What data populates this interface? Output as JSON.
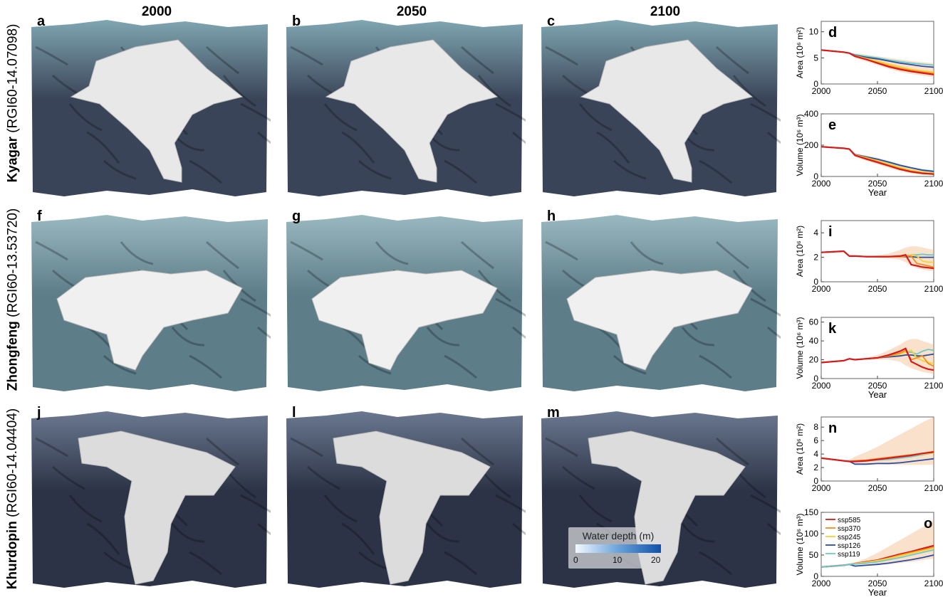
{
  "columns": [
    "2000",
    "2050",
    "2100"
  ],
  "rows": [
    {
      "name": "Kyagar",
      "id": "(RGI60-14.07098)",
      "map_labels": [
        "a",
        "b",
        "c"
      ],
      "terrain": "#3a4458",
      "sky": "#7fa6b2",
      "glacier": "#e8e8e8"
    },
    {
      "name": "Zhongfeng",
      "id": "(RGI60-13.53720)",
      "map_labels": [
        "f",
        "g",
        "h"
      ],
      "terrain": "#5d7d88",
      "sky": "#9ab8c0",
      "glacier": "#f0f0f0"
    },
    {
      "name": "Khurdopin",
      "id": "(RGI60-14.04404)",
      "map_labels": [
        "j",
        "l",
        "m"
      ],
      "terrain": "#2c3346",
      "sky": "#6a7890",
      "glacier": "#dcdcdc"
    }
  ],
  "water_legend": {
    "title": "Water depth (m)",
    "ticks": [
      "0",
      "10",
      "20"
    ]
  },
  "colors": {
    "ssp585": "#d7191c",
    "ssp370": "#f28e1c",
    "ssp245": "#f3d23a",
    "ssp126": "#2b4da0",
    "ssp119": "#6fc9c9"
  },
  "chart_data": [
    {
      "panel": "d",
      "type": "line",
      "ylabel": "Area (10⁶ m²)",
      "xlabel": "",
      "xlim": [
        2000,
        2100
      ],
      "ylim": [
        0,
        12
      ],
      "xticks": [
        "2000",
        "2050",
        "2100"
      ],
      "yticks": [
        "0",
        "5",
        "10"
      ],
      "x": [
        2000,
        2010,
        2020,
        2025,
        2030,
        2040,
        2050,
        2060,
        2070,
        2080,
        2090,
        2100
      ],
      "series": [
        {
          "name": "ssp119",
          "values": [
            6.5,
            6.3,
            6.1,
            5.9,
            5.6,
            5.3,
            5.0,
            4.6,
            4.3,
            4.0,
            3.8,
            3.6
          ]
        },
        {
          "name": "ssp126",
          "values": [
            6.5,
            6.3,
            6.1,
            5.9,
            5.5,
            5.1,
            4.8,
            4.4,
            4.0,
            3.7,
            3.4,
            3.2
          ]
        },
        {
          "name": "ssp245",
          "values": [
            6.5,
            6.3,
            6.1,
            5.9,
            5.4,
            4.9,
            4.4,
            3.8,
            3.3,
            2.8,
            2.5,
            2.3
          ]
        },
        {
          "name": "ssp370",
          "values": [
            6.5,
            6.3,
            6.1,
            5.9,
            5.3,
            4.7,
            4.1,
            3.5,
            3.0,
            2.6,
            2.3,
            2.0
          ]
        },
        {
          "name": "ssp585",
          "values": [
            6.5,
            6.3,
            6.1,
            5.9,
            5.3,
            4.7,
            4.0,
            3.3,
            2.8,
            2.4,
            2.1,
            1.8
          ]
        }
      ],
      "band": {
        "lower": [
          6.5,
          6.3,
          6.1,
          5.9,
          5.0,
          4.3,
          3.6,
          2.9,
          2.3,
          1.9,
          1.6,
          1.3
        ],
        "upper": [
          6.5,
          6.3,
          6.1,
          5.9,
          5.9,
          5.6,
          5.3,
          5.0,
          4.7,
          4.4,
          4.2,
          4.0
        ]
      }
    },
    {
      "panel": "e",
      "type": "line",
      "ylabel": "Volume (10⁶ m³)",
      "xlabel": "Year",
      "xlim": [
        2000,
        2100
      ],
      "ylim": [
        0,
        400
      ],
      "xticks": [
        "2000",
        "2050",
        "2100"
      ],
      "yticks": [
        "0",
        "200",
        "400"
      ],
      "x": [
        2000,
        2010,
        2020,
        2025,
        2030,
        2040,
        2050,
        2060,
        2070,
        2080,
        2090,
        2100
      ],
      "series": [
        {
          "name": "ssp119",
          "values": [
            190,
            185,
            180,
            175,
            140,
            125,
            110,
            90,
            70,
            55,
            42,
            35
          ]
        },
        {
          "name": "ssp126",
          "values": [
            190,
            185,
            180,
            175,
            140,
            125,
            110,
            92,
            72,
            55,
            40,
            32
          ]
        },
        {
          "name": "ssp245",
          "values": [
            190,
            185,
            180,
            175,
            138,
            120,
            100,
            80,
            58,
            40,
            28,
            22
          ]
        },
        {
          "name": "ssp370",
          "values": [
            190,
            185,
            180,
            175,
            135,
            115,
            95,
            72,
            50,
            33,
            22,
            17
          ]
        },
        {
          "name": "ssp585",
          "values": [
            190,
            185,
            180,
            175,
            135,
            112,
            90,
            68,
            46,
            30,
            20,
            15
          ]
        }
      ],
      "band": {
        "lower": [
          190,
          185,
          180,
          175,
          125,
          100,
          78,
          55,
          35,
          20,
          12,
          8
        ],
        "upper": [
          190,
          185,
          180,
          175,
          148,
          135,
          120,
          100,
          80,
          62,
          48,
          40
        ]
      }
    },
    {
      "panel": "i",
      "type": "line",
      "ylabel": "Area (10⁶ m²)",
      "xlabel": "",
      "xlim": [
        2000,
        2100
      ],
      "ylim": [
        0,
        5
      ],
      "xticks": [
        "2000",
        "2050",
        "2100"
      ],
      "yticks": [
        "0",
        "2",
        "4"
      ],
      "x": [
        2000,
        2010,
        2020,
        2025,
        2030,
        2040,
        2050,
        2060,
        2070,
        2075,
        2080,
        2085,
        2090,
        2095,
        2100
      ],
      "series": [
        {
          "name": "ssp119",
          "values": [
            2.4,
            2.45,
            2.5,
            2.1,
            2.1,
            2.05,
            2.05,
            2.05,
            2.1,
            2.15,
            2.2,
            2.2,
            2.25,
            2.2,
            2.2
          ]
        },
        {
          "name": "ssp126",
          "values": [
            2.4,
            2.45,
            2.5,
            2.1,
            2.1,
            2.05,
            2.05,
            2.05,
            2.05,
            2.05,
            2.05,
            2.0,
            2.0,
            2.0,
            2.0
          ]
        },
        {
          "name": "ssp245",
          "values": [
            2.4,
            2.45,
            2.5,
            2.1,
            2.1,
            2.05,
            2.05,
            2.05,
            2.05,
            2.1,
            2.2,
            2.1,
            1.7,
            1.6,
            1.6
          ]
        },
        {
          "name": "ssp370",
          "values": [
            2.4,
            2.45,
            2.5,
            2.1,
            2.1,
            2.05,
            2.05,
            2.05,
            2.05,
            2.1,
            2.1,
            1.5,
            1.4,
            1.3,
            1.2
          ]
        },
        {
          "name": "ssp585",
          "values": [
            2.4,
            2.45,
            2.5,
            2.1,
            2.1,
            2.05,
            2.05,
            2.05,
            2.1,
            2.2,
            1.4,
            1.3,
            1.2,
            1.15,
            1.1
          ]
        }
      ],
      "band": {
        "lower": [
          2.4,
          2.45,
          2.5,
          2.1,
          2.1,
          2.0,
          1.95,
          1.9,
          1.8,
          1.6,
          1.3,
          1.1,
          1.0,
          0.9,
          0.9
        ],
        "upper": [
          2.4,
          2.45,
          2.5,
          2.1,
          2.1,
          2.1,
          2.15,
          2.3,
          2.6,
          2.8,
          2.9,
          2.9,
          2.8,
          2.7,
          2.6
        ]
      }
    },
    {
      "panel": "k",
      "type": "line",
      "ylabel": "Volume (10⁶ m³)",
      "xlabel": "Year",
      "xlim": [
        2000,
        2100
      ],
      "ylim": [
        0,
        65
      ],
      "xticks": [
        "2000",
        "2050",
        "2100"
      ],
      "yticks": [
        "0",
        "20",
        "40",
        "60"
      ],
      "x": [
        2000,
        2010,
        2020,
        2025,
        2030,
        2040,
        2050,
        2060,
        2070,
        2075,
        2080,
        2085,
        2090,
        2095,
        2100
      ],
      "series": [
        {
          "name": "ssp119",
          "values": [
            17,
            18,
            19,
            21,
            20,
            21,
            22,
            24,
            27,
            28,
            28,
            26,
            29,
            31,
            30
          ]
        },
        {
          "name": "ssp126",
          "values": [
            17,
            18,
            19,
            21,
            20,
            21,
            22,
            23,
            24,
            25,
            25,
            24,
            24,
            25,
            26
          ]
        },
        {
          "name": "ssp245",
          "values": [
            17,
            18,
            19,
            21,
            20,
            21,
            22,
            24,
            26,
            28,
            30,
            22,
            19,
            17,
            16
          ]
        },
        {
          "name": "ssp370",
          "values": [
            17,
            18,
            19,
            21,
            20,
            21,
            22,
            24,
            27,
            30,
            20,
            22,
            24,
            16,
            13
          ]
        },
        {
          "name": "ssp585",
          "values": [
            17,
            18,
            19,
            21,
            20,
            21,
            22,
            25,
            29,
            32,
            18,
            15,
            12,
            10,
            9
          ]
        }
      ],
      "band": {
        "lower": [
          17,
          18,
          19,
          21,
          20,
          20,
          20,
          20,
          18,
          14,
          11,
          9,
          7,
          6,
          5
        ],
        "upper": [
          17,
          18,
          19,
          21,
          20,
          22,
          25,
          30,
          36,
          40,
          42,
          42,
          40,
          38,
          36
        ]
      }
    },
    {
      "panel": "n",
      "type": "line",
      "ylabel": "Area (10⁶ m²)",
      "xlabel": "",
      "xlim": [
        2000,
        2100
      ],
      "ylim": [
        0,
        9.5
      ],
      "xticks": [
        "2000",
        "2050",
        "2100"
      ],
      "yticks": [
        "0",
        "2",
        "4",
        "6",
        "8"
      ],
      "x": [
        2000,
        2010,
        2020,
        2025,
        2030,
        2040,
        2050,
        2060,
        2070,
        2080,
        2090,
        2100
      ],
      "series": [
        {
          "name": "ssp119",
          "values": [
            3.4,
            3.2,
            3.0,
            2.9,
            2.9,
            3.0,
            3.1,
            3.2,
            3.4,
            3.6,
            3.9,
            4.2
          ]
        },
        {
          "name": "ssp126",
          "values": [
            3.4,
            3.2,
            3.0,
            2.9,
            2.5,
            2.5,
            2.6,
            2.6,
            2.7,
            2.9,
            3.1,
            3.3
          ]
        },
        {
          "name": "ssp245",
          "values": [
            3.4,
            3.2,
            3.0,
            2.9,
            3.0,
            3.1,
            3.2,
            3.4,
            3.6,
            3.8,
            4.0,
            4.2
          ]
        },
        {
          "name": "ssp370",
          "values": [
            3.4,
            3.2,
            3.0,
            2.9,
            3.0,
            3.1,
            3.3,
            3.5,
            3.7,
            3.9,
            4.1,
            4.4
          ]
        },
        {
          "name": "ssp585",
          "values": [
            3.4,
            3.2,
            3.0,
            2.9,
            2.9,
            3.0,
            3.2,
            3.4,
            3.6,
            3.8,
            4.1,
            4.3
          ]
        }
      ],
      "band": {
        "lower": [
          3.4,
          3.2,
          3.0,
          2.9,
          2.6,
          2.5,
          2.5,
          2.4,
          2.4,
          2.4,
          2.4,
          2.4
        ],
        "upper": [
          3.4,
          3.2,
          3.0,
          3.2,
          3.6,
          4.3,
          5.1,
          6.0,
          6.9,
          7.8,
          8.7,
          9.5
        ]
      }
    },
    {
      "panel": "o",
      "type": "line",
      "ylabel": "Volume (10⁶ m³)",
      "xlabel": "Year",
      "xlim": [
        2000,
        2100
      ],
      "ylim": [
        0,
        150
      ],
      "xticks": [
        "2000",
        "2050",
        "2100"
      ],
      "yticks": [
        "0",
        "50",
        "100",
        "150"
      ],
      "x": [
        2000,
        2010,
        2020,
        2025,
        2030,
        2040,
        2050,
        2060,
        2070,
        2080,
        2090,
        2100
      ],
      "series": [
        {
          "name": "ssp585",
          "values": [
            22,
            24,
            26,
            28,
            30,
            34,
            38,
            45,
            52,
            58,
            65,
            72
          ]
        },
        {
          "name": "ssp370",
          "values": [
            22,
            24,
            26,
            28,
            30,
            33,
            37,
            43,
            50,
            56,
            62,
            68
          ]
        },
        {
          "name": "ssp245",
          "values": [
            22,
            24,
            26,
            28,
            30,
            33,
            37,
            42,
            48,
            54,
            60,
            66
          ]
        },
        {
          "name": "ssp126",
          "values": [
            22,
            24,
            26,
            28,
            24,
            26,
            28,
            31,
            35,
            39,
            44,
            50
          ]
        },
        {
          "name": "ssp119",
          "values": [
            22,
            24,
            26,
            28,
            29,
            31,
            34,
            39,
            44,
            50,
            56,
            62
          ]
        }
      ],
      "band": {
        "lower": [
          22,
          24,
          26,
          28,
          24,
          25,
          26,
          28,
          31,
          34,
          38,
          42
        ],
        "upper": [
          22,
          24,
          26,
          28,
          33,
          42,
          55,
          70,
          85,
          100,
          115,
          130
        ]
      },
      "legend": {
        "entries": [
          "ssp585",
          "ssp370",
          "ssp245",
          "ssp126",
          "ssp119"
        ],
        "position": "top-left"
      }
    }
  ]
}
